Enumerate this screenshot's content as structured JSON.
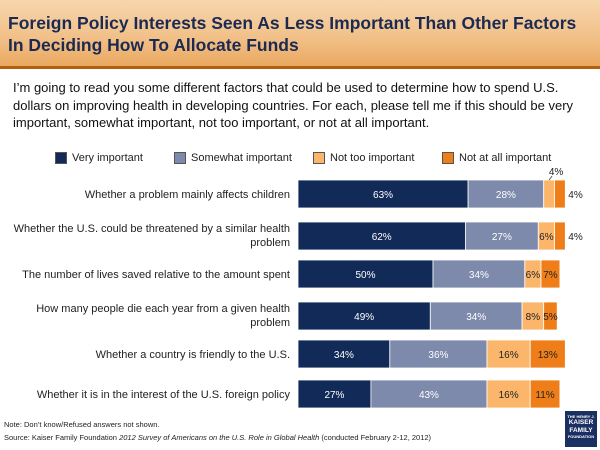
{
  "header": {
    "title": "Foreign Policy Interests Seen As Less Important Than Other Factors In Deciding How To Allocate Funds"
  },
  "subtitle": "I’m going to read you some different factors that could be used to determine how to spend U.S. dollars on improving health in developing countries. For each, please tell me if this should be very important, somewhat important, not too important, or not at all important.",
  "legend": [
    {
      "label": "Very important",
      "color": "#112a57"
    },
    {
      "label": "Somewhat important",
      "color": "#7e8aab"
    },
    {
      "label": "Not too important",
      "color": "#fbb66b"
    },
    {
      "label": "Not at all important",
      "color": "#ef7e19"
    }
  ],
  "chart_data": {
    "type": "bar",
    "orientation": "horizontal",
    "stacked": true,
    "categories": [
      "Whether a problem mainly affects children",
      "Whether the U.S. could be threatened by a similar health problem",
      "The number of lives saved relative to the amount spent",
      "How many people die each year from a given health problem",
      "Whether a country is friendly to the U.S.",
      "Whether it is in the interest of the U.S. foreign policy"
    ],
    "series": [
      {
        "name": "Very important",
        "values": [
          63,
          62,
          50,
          49,
          34,
          27
        ]
      },
      {
        "name": "Somewhat important",
        "values": [
          28,
          27,
          34,
          34,
          36,
          43
        ]
      },
      {
        "name": "Not too important",
        "values": [
          4,
          6,
          6,
          8,
          16,
          16
        ]
      },
      {
        "name": "Not at all important",
        "values": [
          4,
          4,
          7,
          5,
          13,
          11
        ]
      }
    ],
    "labels": [
      [
        "63%",
        "28%",
        "4%",
        "4%"
      ],
      [
        "62%",
        "27%",
        "6%",
        "4%"
      ],
      [
        "50%",
        "34%",
        "6%",
        "7%"
      ],
      [
        "49%",
        "34%",
        "8%",
        "5%"
      ],
      [
        "34%",
        "36%",
        "16%",
        "13%"
      ],
      [
        "27%",
        "43%",
        "16%",
        "11%"
      ]
    ],
    "xlim": [
      0,
      100
    ],
    "title": "Foreign Policy Interests Seen As Less Important Than Other Factors In Deciding How To Allocate Funds",
    "xlabel": "",
    "ylabel": ""
  },
  "footer": {
    "note": "Note: Don’t know/Refused answers not shown.",
    "source_prefix": "Source: Kaiser Family Foundation ",
    "source_title": "2012 Survey of Americans on the U.S. Role in Global Health",
    "source_suffix": " (conducted February 2-12, 2012)"
  },
  "logo": {
    "line1": "THE HENRY J.",
    "line2a": "KAISER",
    "line2b": "FAMILY",
    "line3": "FOUNDATION"
  }
}
